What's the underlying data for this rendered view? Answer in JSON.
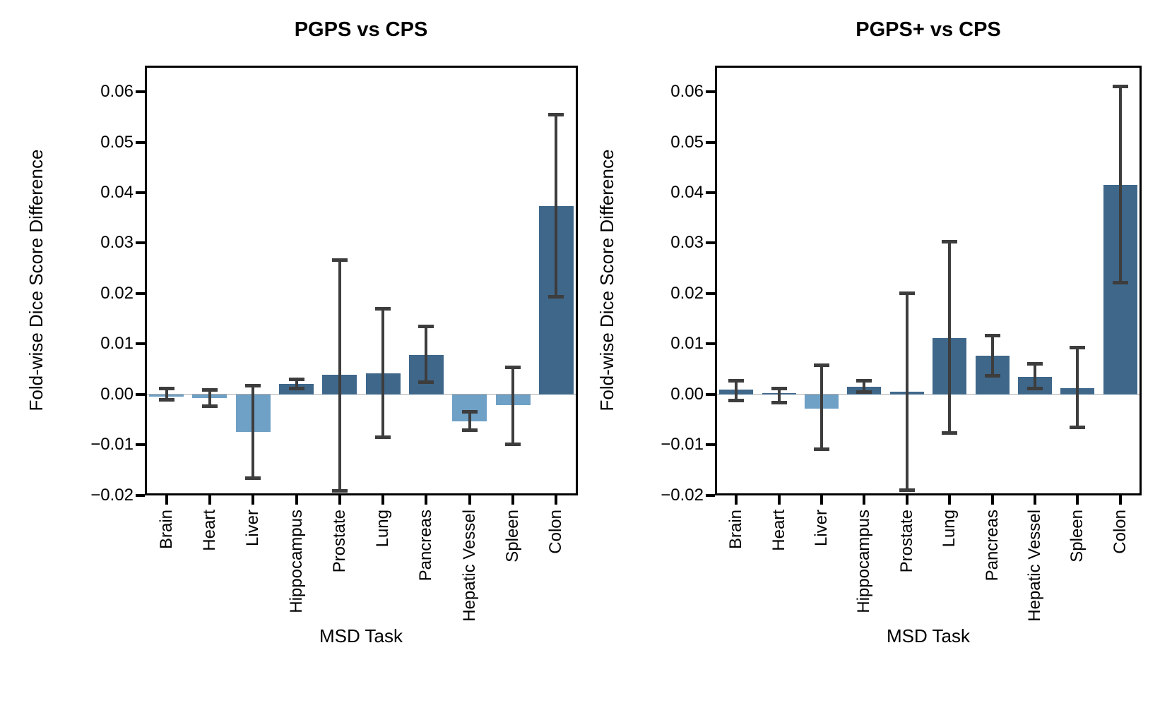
{
  "figure": {
    "ytick_labels": [
      "0.06",
      "0.05",
      "0.04",
      "0.03",
      "0.02",
      "0.01",
      "0.00",
      "−0.01",
      "−0.02"
    ],
    "ytick_values": [
      0.06,
      0.05,
      0.04,
      0.03,
      0.02,
      0.01,
      0.0,
      -0.01,
      -0.02
    ],
    "colors": {
      "positive_bar": "#3F678A",
      "negative_bar": "#6FA0C5",
      "error_bar": "#3D3D3D",
      "zero_line": "#ABABAB",
      "spine": "#000000"
    }
  },
  "chart_data": [
    {
      "type": "bar",
      "title": "PGPS vs CPS",
      "xlabel": "MSD Task",
      "ylabel": "Fold-wise Dice Score Difference",
      "categories": [
        "Brain",
        "Heart",
        "Liver",
        "Hippocampus",
        "Prostate",
        "Lung",
        "Pancreas",
        "Hepatic Vessel",
        "Spleen",
        "Colon"
      ],
      "values": [
        -0.0004,
        -0.0008,
        -0.0075,
        0.0021,
        0.0039,
        0.0042,
        0.0078,
        -0.0054,
        -0.0021,
        0.0373
      ],
      "error_low": [
        -0.0011,
        -0.0023,
        -0.0166,
        0.0011,
        -0.0191,
        -0.0085,
        0.0024,
        -0.0071,
        -0.0099,
        0.0193
      ],
      "error_high": [
        0.0012,
        0.0009,
        0.0017,
        0.003,
        0.0266,
        0.017,
        0.0134,
        -0.0035,
        0.0053,
        0.0555
      ],
      "ylim": [
        -0.02,
        0.0652
      ],
      "grid": false,
      "legend": null
    },
    {
      "type": "bar",
      "title": "PGPS+ vs CPS",
      "xlabel": "MSD Task",
      "ylabel": "Fold-wise Dice Score Difference",
      "categories": [
        "Brain",
        "Heart",
        "Liver",
        "Hippocampus",
        "Prostate",
        "Lung",
        "Pancreas",
        "Hepatic Vessel",
        "Spleen",
        "Colon"
      ],
      "values": [
        0.001,
        0.0002,
        -0.0028,
        0.0015,
        0.0005,
        0.0112,
        0.0076,
        0.0034,
        0.0012,
        0.0415
      ],
      "error_low": [
        -0.0013,
        -0.0016,
        -0.0109,
        0.0005,
        -0.019,
        -0.0077,
        0.0036,
        0.0011,
        -0.0066,
        0.0221
      ],
      "error_high": [
        0.0027,
        0.0011,
        0.0057,
        0.0027,
        0.02,
        0.0302,
        0.0117,
        0.0061,
        0.0092,
        0.061
      ],
      "ylim": [
        -0.02,
        0.0652
      ],
      "grid": false,
      "legend": null
    }
  ]
}
